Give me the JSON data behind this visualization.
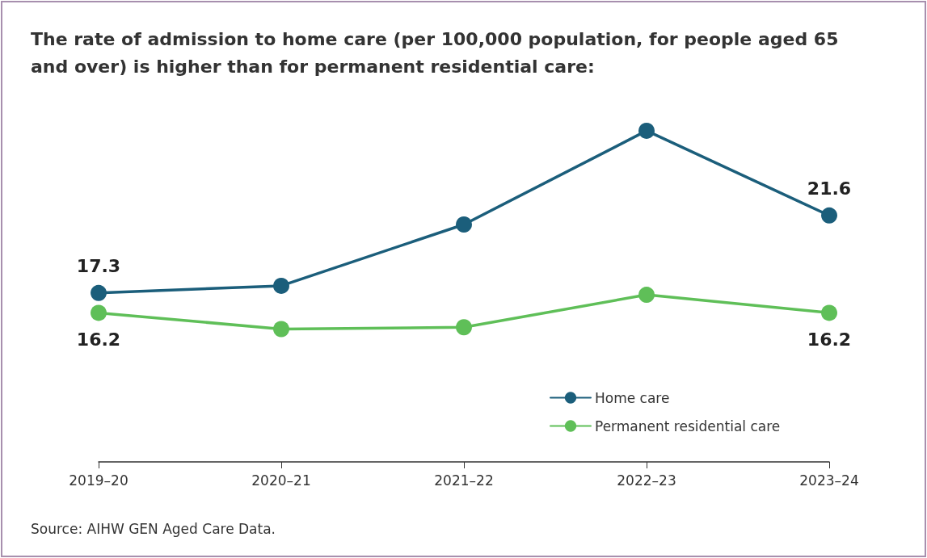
{
  "chart_data": {
    "type": "line",
    "title": "The rate of admission to home care (per 100,000 population, for people aged 65 and over) is higher than for permanent residential care:",
    "categories": [
      "2019–20",
      "2020–21",
      "2021–22",
      "2022–23",
      "2023–24"
    ],
    "series": [
      {
        "name": "Home care",
        "color": "#1b5e7b",
        "values": [
          17.3,
          17.7,
          21.1,
          26.3,
          21.6
        ],
        "value_labels": [
          "17.3",
          null,
          null,
          null,
          "21.6"
        ]
      },
      {
        "name": "Permanent residential care",
        "color": "#5fbf58",
        "values": [
          16.2,
          15.3,
          15.4,
          17.2,
          16.2
        ],
        "value_labels": [
          "16.2",
          null,
          null,
          null,
          "16.2"
        ]
      }
    ],
    "tick_labels": "x",
    "grid": false,
    "legend": "bottom right",
    "marker": "circle",
    "line_style": "solid",
    "annotations": [
      "Source: AIHW GEN Aged Care Data."
    ]
  }
}
